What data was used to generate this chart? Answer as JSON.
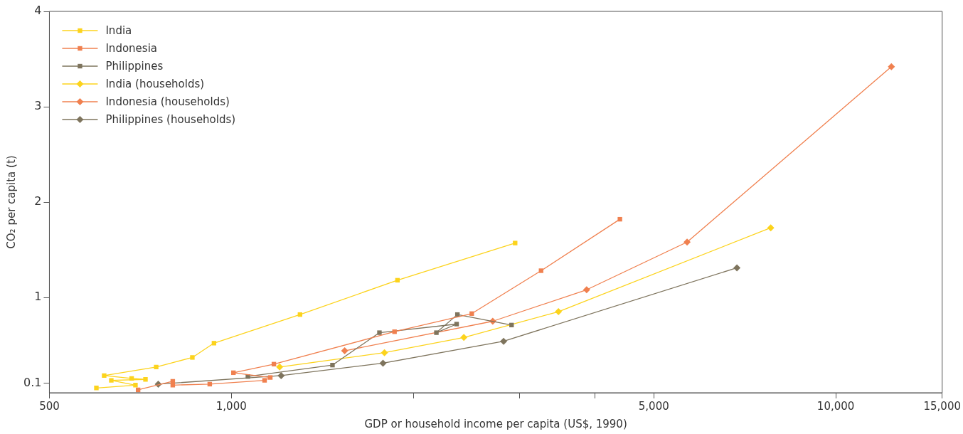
{
  "chart_data": {
    "type": "line",
    "xlabel": "GDP or household income per capita (US$, 1990)",
    "ylabel": "CO₂ per capita (t)",
    "log": "x",
    "xlim": [
      500,
      15000
    ],
    "xticks": [
      500,
      {
        "value": 1000,
        "label": "1,000"
      },
      {
        "value": 2000,
        "label": null
      },
      {
        "value": 3000,
        "label": null
      },
      {
        "value": 4000,
        "label": null
      },
      {
        "value": 5000,
        "label": "5,000"
      },
      {
        "value": 10000,
        "label": "10,000"
      },
      {
        "value": 15000,
        "label": "15,000"
      }
    ],
    "ylim": [
      0,
      4
    ],
    "yticks": [
      0.1,
      1,
      2,
      3,
      4
    ],
    "grid": false,
    "legend": "top left",
    "line_style": "solid",
    "series": [
      {
        "name": "India",
        "color": "#fcd31c",
        "marker": "square",
        "x": [
          598,
          694,
          633,
          721,
          684,
          616,
          751,
          862,
          936,
          1299,
          1883,
          2948
        ],
        "values": [
          0.05,
          0.08,
          0.13,
          0.14,
          0.15,
          0.18,
          0.27,
          0.37,
          0.52,
          0.82,
          1.18,
          1.57
        ]
      },
      {
        "name": "Indonesia",
        "color": "#f0804f",
        "marker": "square",
        "x": [
          701,
          800,
          800,
          921,
          1135,
          1160,
          1008,
          1176,
          1862,
          2499,
          3254,
          4394
        ],
        "values": [
          0.03,
          0.12,
          0.08,
          0.09,
          0.13,
          0.16,
          0.21,
          0.3,
          0.64,
          0.83,
          1.28,
          1.82
        ]
      },
      {
        "name": "Philippines",
        "color": "#7e745d",
        "marker": "square",
        "x": [
          1065,
          1470,
          1758,
          2359,
          2184,
          2366,
          2908
        ],
        "values": [
          0.17,
          0.29,
          0.63,
          0.72,
          0.63,
          0.82,
          0.71
        ]
      },
      {
        "name": "India (households)",
        "color": "#fcd31c",
        "marker": "diamond",
        "x": [
          1202,
          1792,
          2425,
          3477,
          7806
        ],
        "values": [
          0.27,
          0.42,
          0.58,
          0.85,
          1.73
        ]
      },
      {
        "name": "Indonesia (households)",
        "color": "#f0804f",
        "marker": "diamond",
        "x": [
          1540,
          2707,
          3871,
          5676,
          12360
        ],
        "values": [
          0.44,
          0.75,
          1.08,
          1.58,
          3.42
        ]
      },
      {
        "name": "Philippines (households)",
        "color": "#7e745d",
        "marker": "diamond",
        "x": [
          757,
          1209,
          1782,
          2821,
          6862
        ],
        "values": [
          0.09,
          0.18,
          0.31,
          0.54,
          1.31
        ]
      }
    ]
  }
}
